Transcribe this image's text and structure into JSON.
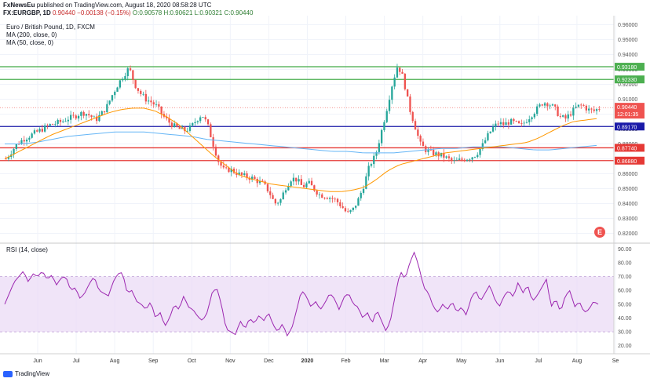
{
  "header": {
    "publisher": "FxNewsEu",
    "published_text": " published on TradingView.com, August 18, 2020 08:58:28 UTC",
    "symbol": "FX:EURGBP, 1D",
    "last": "0.90440",
    "change": "−0.00138 (−0.15%)",
    "open": "O:0.90578",
    "high": "H:0.90621",
    "low": "L:0.90321",
    "close": "C:0.90440"
  },
  "legend": {
    "title": "Euro / British Pound, 1D, FXCM",
    "ma200": "MA (200, close, 0)",
    "ma50": "MA (50, close, 0)"
  },
  "rsi_label": "RSI (14, close)",
  "footer": {
    "brand": "TradingView"
  },
  "colors": {
    "up": "#26a69a",
    "down": "#ef5350",
    "ma200": "#64b5f6",
    "ma50": "#ff9800",
    "support_green": "#4caf50",
    "blue_line": "#1a1aa8",
    "red_line": "#e53935",
    "rsi": "#9c27b0",
    "rsi_band": "#e9d8f5"
  },
  "chart_data": [
    {
      "type": "candlestick",
      "title": "Euro / British Pound, 1D, FXCM",
      "x_ticks": [
        "Jun",
        "Jul",
        "Aug",
        "Sep",
        "Oct",
        "Nov",
        "Dec",
        "2020",
        "Feb",
        "Mar",
        "Apr",
        "May",
        "Jun",
        "Jul",
        "Aug",
        "Se"
      ],
      "y_ticks": [
        "0.96000",
        "0.95000",
        "0.94000",
        "0.93000",
        "0.92000",
        "0.91000",
        "0.90000",
        "0.89000",
        "0.88000",
        "0.87000",
        "0.86000",
        "0.85000",
        "0.84000",
        "0.83000",
        "0.82000"
      ],
      "ylim": [
        0.815,
        0.965
      ],
      "close_path": [
        0.87,
        0.875,
        0.88,
        0.883,
        0.885,
        0.887,
        0.889,
        0.891,
        0.893,
        0.894,
        0.895,
        0.897,
        0.898,
        0.9,
        0.901,
        0.899,
        0.896,
        0.9,
        0.905,
        0.913,
        0.92,
        0.926,
        0.931,
        0.92,
        0.914,
        0.91,
        0.908,
        0.905,
        0.899,
        0.895,
        0.892,
        0.89,
        0.889,
        0.891,
        0.896,
        0.9,
        0.893,
        0.88,
        0.868,
        0.862,
        0.863,
        0.861,
        0.859,
        0.858,
        0.857,
        0.855,
        0.853,
        0.848,
        0.84,
        0.842,
        0.851,
        0.857,
        0.856,
        0.851,
        0.854,
        0.85,
        0.846,
        0.845,
        0.844,
        0.842,
        0.838,
        0.833,
        0.836,
        0.843,
        0.853,
        0.866,
        0.872,
        0.887,
        0.903,
        0.92,
        0.933,
        0.924,
        0.905,
        0.893,
        0.88,
        0.876,
        0.874,
        0.873,
        0.872,
        0.87,
        0.868,
        0.869,
        0.87,
        0.871,
        0.873,
        0.878,
        0.885,
        0.891,
        0.894,
        0.893,
        0.895,
        0.894,
        0.892,
        0.896,
        0.9,
        0.904,
        0.908,
        0.907,
        0.904,
        0.898,
        0.897,
        0.901,
        0.905,
        0.906,
        0.903,
        0.902,
        0.904
      ],
      "ma50_path": [
        0.87,
        0.874,
        0.878,
        0.882,
        0.886,
        0.889,
        0.892,
        0.895,
        0.898,
        0.901,
        0.903,
        0.904,
        0.904,
        0.902,
        0.898,
        0.893,
        0.886,
        0.879,
        0.872,
        0.866,
        0.86,
        0.857,
        0.855,
        0.853,
        0.852,
        0.851,
        0.85,
        0.849,
        0.848,
        0.848,
        0.849,
        0.851,
        0.856,
        0.862,
        0.866,
        0.868,
        0.87,
        0.872,
        0.874,
        0.875,
        0.876,
        0.877,
        0.878,
        0.879,
        0.88,
        0.881,
        0.884,
        0.888,
        0.892,
        0.895,
        0.896,
        0.897
      ],
      "ma200_path": [
        0.88,
        0.88,
        0.881,
        0.883,
        0.885,
        0.886,
        0.887,
        0.888,
        0.888,
        0.888,
        0.887,
        0.886,
        0.885,
        0.883,
        0.882,
        0.881,
        0.88,
        0.879,
        0.878,
        0.877,
        0.876,
        0.875,
        0.875,
        0.874,
        0.874,
        0.874,
        0.875,
        0.876,
        0.877,
        0.877,
        0.878,
        0.878,
        0.878,
        0.877,
        0.876,
        0.876,
        0.877,
        0.878,
        0.879
      ],
      "horizontal_levels": [
        {
          "value": 0.9318,
          "label": "0.93180",
          "color": "#4caf50"
        },
        {
          "value": 0.9233,
          "label": "0.92330",
          "color": "#4caf50"
        },
        {
          "value": 0.8917,
          "label": "0.89170",
          "color": "#1a1aa8"
        },
        {
          "value": 0.8774,
          "label": "0.87740",
          "color": "#e53935"
        },
        {
          "value": 0.8688,
          "label": "0.86880",
          "color": "#e53935"
        }
      ],
      "current_price": {
        "label": "0.90440",
        "countdown": "12:01:35",
        "value": 0.9044
      }
    },
    {
      "type": "line",
      "title": "RSI (14, close)",
      "y_ticks": [
        "90.00",
        "80.00",
        "70.00",
        "60.00",
        "50.00",
        "40.00",
        "30.00",
        "20.00"
      ],
      "ylim": [
        17,
        93
      ],
      "band": [
        30,
        70
      ],
      "series": [
        {
          "values": [
            50,
            58,
            66,
            70,
            74,
            66,
            72,
            70,
            74,
            68,
            71,
            64,
            69,
            70,
            60,
            62,
            54,
            58,
            65,
            70,
            60,
            58,
            56,
            66,
            72,
            73,
            58,
            60,
            52,
            50,
            46,
            52,
            40,
            44,
            34,
            40,
            50,
            46,
            56,
            48,
            46,
            41,
            38,
            44,
            58,
            62,
            50,
            32,
            30,
            28,
            38,
            32,
            40,
            36,
            42,
            38,
            44,
            35,
            30,
            36,
            27,
            33,
            46,
            60,
            56,
            48,
            52,
            46,
            51,
            58,
            54,
            46,
            55,
            58,
            50,
            48,
            40,
            44,
            36,
            46,
            38,
            30,
            40,
            58,
            74,
            68,
            80,
            88,
            76,
            62,
            58,
            48,
            44,
            50,
            46,
            52,
            44,
            48,
            42,
            54,
            60,
            52,
            58,
            64,
            54,
            48,
            56,
            60,
            55,
            66,
            58,
            64,
            52,
            56,
            62,
            68,
            48,
            54,
            44,
            56,
            60,
            48,
            52,
            44,
            46,
            52,
            50
          ]
        }
      ]
    }
  ]
}
